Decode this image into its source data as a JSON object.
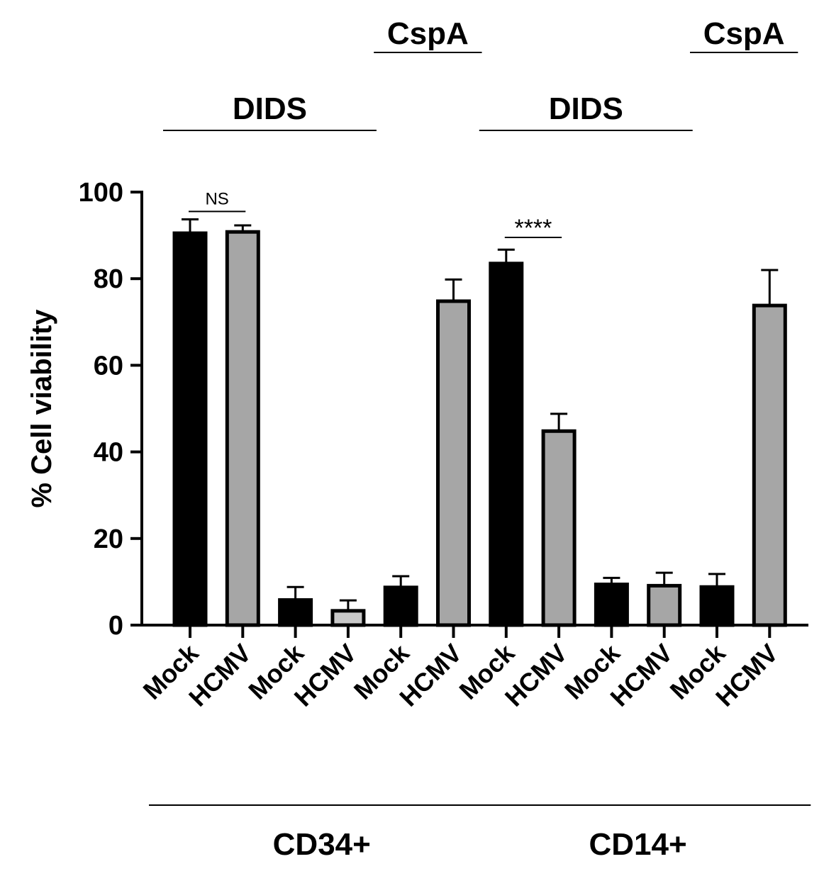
{
  "chart_data": {
    "type": "bar",
    "title": "",
    "xlabel": "",
    "ylabel": "% Cell viability",
    "ylim": [
      0,
      100
    ],
    "yticks": [
      0,
      20,
      40,
      60,
      80,
      100
    ],
    "grid": false,
    "categories": [
      "Mock",
      "HCMV",
      "Mock",
      "HCMV",
      "Mock",
      "HCMV",
      "Mock",
      "HCMV",
      "Mock",
      "HCMV",
      "Mock",
      "HCMV"
    ],
    "values": [
      90.5,
      90.8,
      5.8,
      3.3,
      8.7,
      74.8,
      83.5,
      44.8,
      9.4,
      9.1,
      8.8,
      73.8
    ],
    "errors": [
      3.2,
      1.5,
      3.0,
      2.4,
      2.6,
      5.0,
      3.2,
      4.0,
      1.5,
      3.0,
      3.0,
      8.2
    ],
    "bar_colors": [
      "#000000",
      "#a6a6a6",
      "#000000",
      "#c8c8c8",
      "#000000",
      "#a6a6a6",
      "#000000",
      "#a6a6a6",
      "#000000",
      "#a6a6a6",
      "#000000",
      "#a6a6a6"
    ],
    "treatment_labels": [
      {
        "text": "CspA",
        "from": 4,
        "to": 5
      },
      {
        "text": "DIDS",
        "from": 0,
        "to": 3
      },
      {
        "text": "CspA",
        "from": 10,
        "to": 11
      },
      {
        "text": "DIDS",
        "from": 6,
        "to": 9
      }
    ],
    "cell_types": [
      {
        "text": "CD34+",
        "from": 0,
        "to": 5
      },
      {
        "text": "CD14+",
        "from": 6,
        "to": 11
      }
    ],
    "significance": [
      {
        "text": "NS",
        "from": 0,
        "to": 1,
        "y": 97
      },
      {
        "text": "****",
        "from": 6,
        "to": 7,
        "y": 91
      }
    ]
  }
}
